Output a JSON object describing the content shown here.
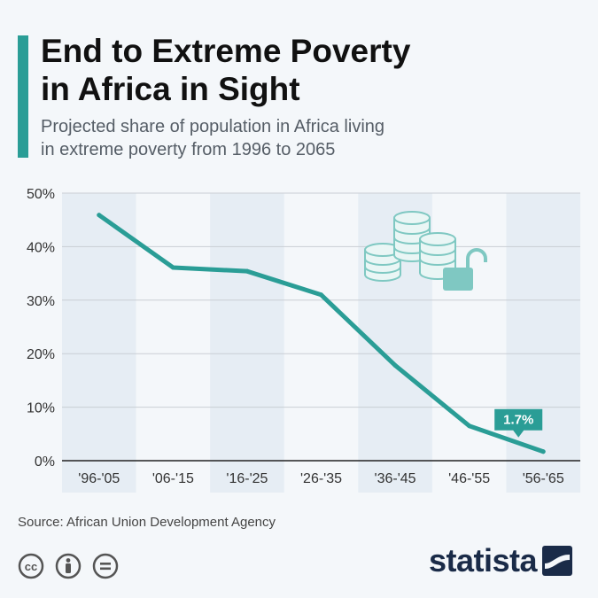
{
  "header": {
    "title": "End to Extreme Poverty\nin Africa in Sight",
    "subtitle": "Projected share of population in Africa living\nin extreme poverty from 1996 to 2065"
  },
  "chart_data": {
    "type": "line",
    "categories": [
      "'96-'05",
      "'06-'15",
      "'16-'25",
      "'26-'35",
      "'36-'45",
      "'46-'55",
      "'56-'65"
    ],
    "series": [
      {
        "values": [
          45.9,
          36.1,
          35.4,
          31.0,
          17.8,
          6.5,
          1.7
        ]
      }
    ],
    "ylim": [
      0,
      50
    ],
    "yticks": [
      0,
      10,
      20,
      30,
      40,
      50
    ],
    "ytick_labels": [
      "0%",
      "10%",
      "20%",
      "30%",
      "40%",
      "50%"
    ],
    "grid": true,
    "annotation": {
      "category_index": 6,
      "text": "1.7%"
    },
    "colors": {
      "line": "#2a9d96",
      "band": "#e6edf4",
      "grid": "#c9ced4",
      "illustration": "#7fc8c2"
    }
  },
  "footer": {
    "source": "Source: African Union Development Agency",
    "license_icons": [
      "creative-commons-icon",
      "attribution-icon",
      "no-derivatives-icon"
    ],
    "brand": "statista"
  }
}
